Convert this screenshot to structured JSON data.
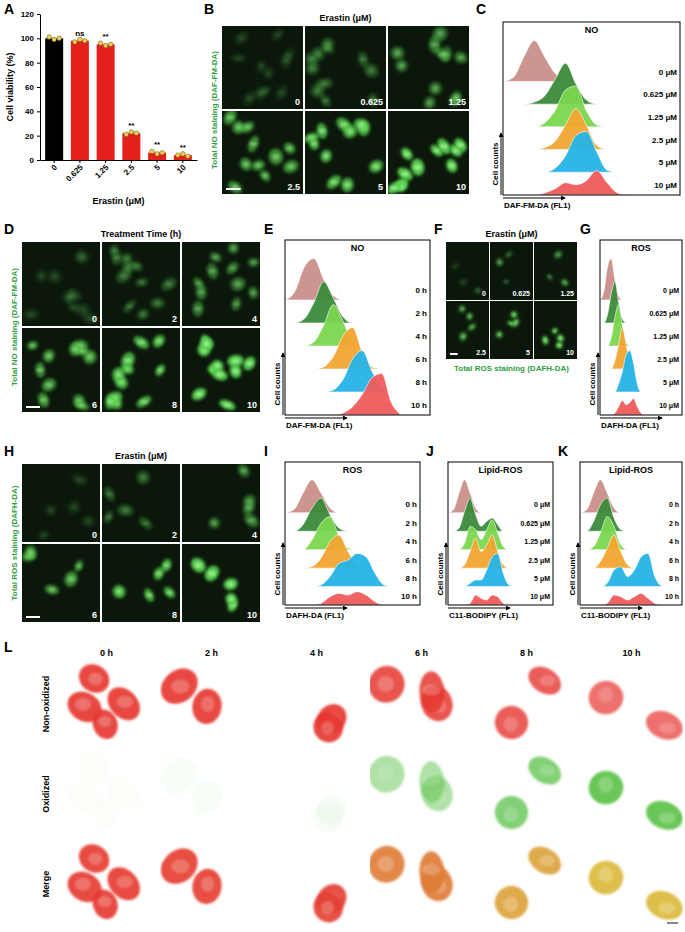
{
  "chart_data": [
    {
      "panel": "A",
      "type": "bar",
      "x_label": "Erastin (μM)",
      "y_label": "Cell viability (%)",
      "categories": [
        "0",
        "0.625",
        "1.25",
        "2.5",
        "5",
        "10"
      ],
      "values": [
        100,
        98,
        95,
        22,
        6,
        4
      ],
      "replicates": [
        [
          101,
          99,
          100
        ],
        [
          97,
          99,
          98
        ],
        [
          96,
          94,
          95
        ],
        [
          21,
          23,
          22
        ],
        [
          7,
          5,
          6
        ],
        [
          4,
          5,
          3
        ]
      ],
      "annotations": [
        null,
        "ns",
        "**",
        "**",
        "**",
        "**"
      ],
      "colors": [
        "#000000",
        "#e3201b",
        "#e3201b",
        "#e3201b",
        "#e3201b",
        "#e3201b"
      ],
      "ylim": [
        0,
        120
      ],
      "yticks": [
        0,
        20,
        40,
        60,
        80,
        100,
        120
      ]
    },
    {
      "panel": "C",
      "type": "density",
      "title": "NO",
      "x_label": "DAF-FM-DA (FL1)",
      "y_label": "Cell counts",
      "tick_labels": false,
      "xlim": [
        0,
        17
      ],
      "ylim": [
        0,
        1
      ],
      "x": [
        0,
        1,
        2,
        3,
        4,
        5,
        6,
        7,
        8,
        9,
        10,
        11,
        12
      ],
      "series": [
        {
          "name": "0 μM",
          "color": "#c98f8a",
          "values": [
            0,
            0.1,
            0.6,
            1.0,
            0.6,
            0.2,
            0.05,
            0,
            0,
            0,
            0,
            0,
            0
          ]
        },
        {
          "name": "0.625 μM",
          "color": "#3a8a3a",
          "values": [
            0,
            0,
            0,
            0.05,
            0.2,
            0.6,
            1.0,
            0.5,
            0.1,
            0,
            0,
            0,
            0
          ]
        },
        {
          "name": "1.25 μM",
          "color": "#7bd64e",
          "values": [
            0,
            0,
            0,
            0,
            0.1,
            0.4,
            0.9,
            1.0,
            0.4,
            0.05,
            0,
            0,
            0
          ]
        },
        {
          "name": "2.5 μM",
          "color": "#f2a531",
          "values": [
            0,
            0,
            0,
            0,
            0.05,
            0.2,
            0.6,
            1.0,
            0.6,
            0.1,
            0,
            0,
            0
          ]
        },
        {
          "name": "5 μM",
          "color": "#25b3e6",
          "values": [
            0,
            0,
            0,
            0,
            0,
            0.1,
            0.4,
            0.9,
            1.0,
            0.5,
            0.05,
            0,
            0
          ]
        },
        {
          "name": "10 μM",
          "color": "#ef5b5b",
          "values": [
            0,
            0,
            0,
            0,
            0.05,
            0.15,
            0.3,
            0.25,
            0.35,
            0.6,
            0.3,
            0.05,
            0
          ]
        }
      ]
    },
    {
      "panel": "E",
      "type": "density",
      "title": "NO",
      "x_label": "DAF-FM-DA (FL1)",
      "y_label": "Cell counts",
      "tick_labels": false,
      "xlim": [
        0,
        15
      ],
      "ylim": [
        0,
        1
      ],
      "x": [
        0,
        1,
        2,
        3,
        4,
        5,
        6,
        7,
        8,
        9,
        10,
        11,
        12
      ],
      "series": [
        {
          "name": "0 h",
          "color": "#c98f8a",
          "values": [
            0,
            0.2,
            0.8,
            1.0,
            0.5,
            0.1,
            0,
            0,
            0,
            0,
            0,
            0,
            0
          ]
        },
        {
          "name": "2 h",
          "color": "#3a8a3a",
          "values": [
            0,
            0,
            0.1,
            0.5,
            1.0,
            0.6,
            0.15,
            0,
            0,
            0,
            0,
            0,
            0
          ]
        },
        {
          "name": "4 h",
          "color": "#7bd64e",
          "values": [
            0,
            0,
            0,
            0.1,
            0.5,
            1.0,
            0.6,
            0.1,
            0,
            0,
            0,
            0,
            0
          ]
        },
        {
          "name": "6 h",
          "color": "#f2a531",
          "values": [
            0,
            0,
            0,
            0,
            0.05,
            0.3,
            0.8,
            1.0,
            0.4,
            0.05,
            0,
            0,
            0
          ]
        },
        {
          "name": "8 h",
          "color": "#25b3e6",
          "values": [
            0,
            0,
            0,
            0,
            0,
            0.05,
            0.3,
            0.8,
            1.0,
            0.5,
            0.1,
            0,
            0
          ]
        },
        {
          "name": "10 h",
          "color": "#ef5b5b",
          "values": [
            0,
            0,
            0,
            0,
            0,
            0,
            0.05,
            0.2,
            0.5,
            0.9,
            1.0,
            0.3,
            0
          ]
        }
      ]
    },
    {
      "panel": "G",
      "type": "density",
      "title": "ROS",
      "x_label": "DAFH-DA (FL1)",
      "y_label": "Cell counts",
      "tick_labels": false,
      "xlim": [
        0,
        22
      ],
      "ylim": [
        0,
        1
      ],
      "x": [
        0,
        1,
        2,
        3,
        4,
        5,
        6,
        7,
        8,
        9,
        10,
        11,
        12
      ],
      "series": [
        {
          "name": "0 μM",
          "color": "#c98f8a",
          "values": [
            0,
            0.2,
            0.8,
            1.0,
            0.5,
            0.1,
            0,
            0,
            0,
            0,
            0,
            0,
            0
          ]
        },
        {
          "name": "0.625 μM",
          "color": "#3a8a3a",
          "values": [
            0,
            0,
            0.2,
            0.7,
            1.0,
            0.5,
            0.1,
            0,
            0,
            0,
            0,
            0,
            0
          ]
        },
        {
          "name": "1.25 μM",
          "color": "#7bd64e",
          "values": [
            0,
            0,
            0,
            0.2,
            0.7,
            1.0,
            0.5,
            0.1,
            0,
            0,
            0,
            0,
            0
          ]
        },
        {
          "name": "2.5 μM",
          "color": "#f2a531",
          "values": [
            0,
            0,
            0,
            0,
            0.2,
            0.6,
            1.0,
            0.6,
            0.15,
            0,
            0,
            0,
            0
          ]
        },
        {
          "name": "5 μM",
          "color": "#25b3e6",
          "values": [
            0,
            0,
            0,
            0,
            0,
            0.2,
            0.5,
            0.9,
            1.0,
            0.7,
            0.2,
            0,
            0
          ]
        },
        {
          "name": "10 μM",
          "color": "#ef5b5b",
          "values": [
            0,
            0,
            0,
            0,
            0.05,
            0.2,
            0.35,
            0.25,
            0.3,
            0.4,
            0.2,
            0.05,
            0
          ]
        }
      ]
    },
    {
      "panel": "I",
      "type": "density",
      "title": "ROS",
      "x_label": "DAFH-DA (FL1)",
      "y_label": "Cell counts",
      "tick_labels": false,
      "xlim": [
        0,
        15
      ],
      "ylim": [
        0,
        1
      ],
      "x": [
        0,
        1,
        2,
        3,
        4,
        5,
        6,
        7,
        8,
        9,
        10,
        11,
        12
      ],
      "series": [
        {
          "name": "0 h",
          "color": "#c98f8a",
          "values": [
            0,
            0.1,
            0.6,
            1.0,
            0.6,
            0.15,
            0,
            0,
            0,
            0,
            0,
            0,
            0
          ]
        },
        {
          "name": "2 h",
          "color": "#3a8a3a",
          "values": [
            0,
            0,
            0.2,
            0.7,
            1.0,
            0.5,
            0.1,
            0,
            0,
            0,
            0,
            0,
            0
          ]
        },
        {
          "name": "4 h",
          "color": "#7bd64e",
          "values": [
            0,
            0,
            0,
            0.3,
            0.8,
            1.0,
            0.4,
            0.05,
            0,
            0,
            0,
            0,
            0
          ]
        },
        {
          "name": "6 h",
          "color": "#f2a531",
          "values": [
            0,
            0,
            0,
            0.05,
            0.3,
            0.8,
            1.0,
            0.5,
            0.1,
            0,
            0,
            0,
            0
          ]
        },
        {
          "name": "8 h",
          "color": "#25b3e6",
          "values": [
            0,
            0,
            0,
            0,
            0.05,
            0.3,
            0.7,
            0.8,
            1.0,
            0.9,
            0.4,
            0.05,
            0
          ]
        },
        {
          "name": "10 h",
          "color": "#ef5b5b",
          "values": [
            0,
            0,
            0,
            0,
            0.05,
            0.25,
            0.35,
            0.3,
            0.4,
            0.3,
            0.1,
            0,
            0
          ]
        }
      ]
    },
    {
      "panel": "J",
      "type": "density",
      "title": "Lipid-ROS",
      "x_label": "C11-BODIPY (FL1)",
      "y_label": "Cell counts",
      "tick_labels": false,
      "xlim": [
        0,
        19
      ],
      "ylim": [
        0,
        1
      ],
      "x": [
        0,
        1,
        2,
        3,
        4,
        5,
        6,
        7,
        8,
        9,
        10,
        11,
        12
      ],
      "series": [
        {
          "name": "0 μM",
          "color": "#c98f8a",
          "values": [
            0,
            0.1,
            0.6,
            1.0,
            0.6,
            0.15,
            0,
            0,
            0,
            0,
            0,
            0,
            0
          ]
        },
        {
          "name": "0.625 μM",
          "color": "#3a8a3a",
          "values": [
            0,
            0,
            0.1,
            0.6,
            1.0,
            0.5,
            0.15,
            0.3,
            0.4,
            0.2,
            0,
            0,
            0
          ]
        },
        {
          "name": "1.25 μM",
          "color": "#7bd64e",
          "values": [
            0,
            0,
            0,
            0.2,
            0.7,
            0.6,
            0.3,
            0.6,
            0.9,
            0.5,
            0.1,
            0,
            0
          ]
        },
        {
          "name": "2.5 μM",
          "color": "#f2a531",
          "values": [
            0,
            0,
            0,
            0.1,
            0.5,
            0.9,
            0.5,
            0.7,
            1.0,
            0.5,
            0.1,
            0,
            0
          ]
        },
        {
          "name": "5 μM",
          "color": "#25b3e6",
          "values": [
            0,
            0,
            0,
            0,
            0.1,
            0.2,
            0.2,
            0.5,
            0.9,
            1.0,
            0.4,
            0.05,
            0
          ]
        },
        {
          "name": "10 μM",
          "color": "#ef5b5b",
          "values": [
            0,
            0,
            0,
            0,
            0.05,
            0.3,
            0.2,
            0.15,
            0.3,
            0.25,
            0.05,
            0,
            0
          ]
        }
      ]
    },
    {
      "panel": "K",
      "type": "density",
      "title": "Lipid-ROS",
      "x_label": "C11-BODIPY (FL1)",
      "y_label": "Cell counts",
      "tick_labels": false,
      "xlim": [
        0,
        15
      ],
      "ylim": [
        0,
        1
      ],
      "x": [
        0,
        1,
        2,
        3,
        4,
        5,
        6,
        7,
        8,
        9,
        10,
        11,
        12
      ],
      "series": [
        {
          "name": "0 h",
          "color": "#c98f8a",
          "values": [
            0,
            0.1,
            0.6,
            1.0,
            0.6,
            0.15,
            0,
            0,
            0,
            0,
            0,
            0,
            0
          ]
        },
        {
          "name": "2 h",
          "color": "#3a8a3a",
          "values": [
            0,
            0,
            0.3,
            0.8,
            1.0,
            0.4,
            0.05,
            0,
            0,
            0,
            0,
            0,
            0
          ]
        },
        {
          "name": "4 h",
          "color": "#7bd64e",
          "values": [
            0,
            0,
            0.1,
            0.5,
            1.0,
            0.7,
            0.15,
            0,
            0,
            0,
            0,
            0,
            0
          ]
        },
        {
          "name": "6 h",
          "color": "#f2a531",
          "values": [
            0,
            0,
            0,
            0.2,
            0.6,
            1.0,
            0.5,
            0.1,
            0,
            0,
            0,
            0,
            0
          ]
        },
        {
          "name": "8 h",
          "color": "#25b3e6",
          "values": [
            0,
            0,
            0,
            0,
            0.1,
            0.5,
            0.6,
            0.3,
            0.5,
            0.9,
            1.0,
            0.3,
            0
          ]
        },
        {
          "name": "10 h",
          "color": "#ef5b5b",
          "values": [
            0,
            0,
            0,
            0,
            0.05,
            0.3,
            0.25,
            0.15,
            0.25,
            0.35,
            0.2,
            0.05,
            0
          ]
        }
      ]
    }
  ],
  "image_panels": [
    {
      "panel": "B",
      "title": "Erastin (μM)",
      "stain_label": "Total NO staining (DAF-FM-DA)",
      "tiles": [
        "0",
        "0.625",
        "1.25",
        "2.5",
        "5",
        "10"
      ]
    },
    {
      "panel": "D",
      "title": "Treatment Time (h)",
      "stain_label": "Total NO staining (DAF-FM-DA)",
      "tiles": [
        "0",
        "2",
        "4",
        "6",
        "8",
        "10"
      ]
    },
    {
      "panel": "F",
      "title": "Erastin (μM)",
      "stain_label": "Total ROS staining (DAFH-DA)",
      "tiles": [
        "0",
        "0.625",
        "1.25",
        "2.5",
        "5",
        "10"
      ]
    },
    {
      "panel": "H",
      "title": "Erastin (μM)",
      "stain_label": "Total ROS staining (DAFH-DA)",
      "tiles": [
        "0",
        "2",
        "4",
        "6",
        "8",
        "10"
      ]
    }
  ],
  "confocal_panel": {
    "panel": "L",
    "columns": [
      "0 h",
      "2 h",
      "4 h",
      "6 h",
      "8 h",
      "10 h"
    ],
    "rows": [
      "Non-oxidized",
      "Oxidized",
      "Merge"
    ]
  }
}
